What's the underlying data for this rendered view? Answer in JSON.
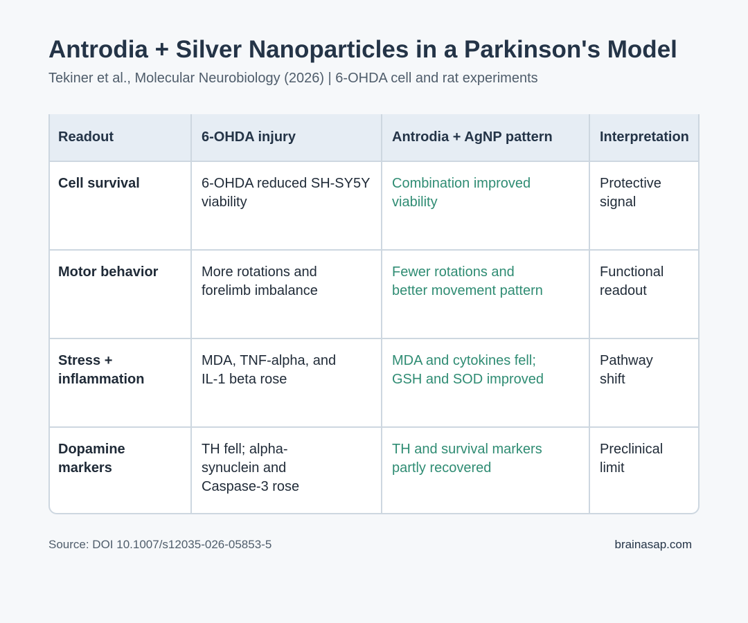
{
  "title": "Antrodia + Silver Nanoparticles in a Parkinson's Model",
  "subtitle": "Tekiner et al., Molecular Neurobiology (2026) | 6-OHDA cell and rat experiments",
  "table": {
    "headers": [
      "Readout",
      "6-OHDA injury",
      "Antrodia + AgNP pattern",
      "Interpretation"
    ],
    "rows": [
      {
        "readout": [
          "Cell survival"
        ],
        "injury": [
          "6-OHDA reduced SH-SY5Y",
          "viability"
        ],
        "pattern": [
          "Combination improved",
          "viability"
        ],
        "interpretation": [
          "Protective",
          "signal"
        ]
      },
      {
        "readout": [
          "Motor behavior"
        ],
        "injury": [
          "More rotations and",
          "forelimb imbalance"
        ],
        "pattern": [
          "Fewer rotations and",
          "better movement pattern"
        ],
        "interpretation": [
          "Functional",
          "readout"
        ]
      },
      {
        "readout": [
          "Stress +",
          "inflammation"
        ],
        "injury": [
          "MDA, TNF-alpha, and",
          "IL-1 beta rose"
        ],
        "pattern": [
          "MDA and cytokines fell;",
          "GSH and SOD improved"
        ],
        "interpretation": [
          "Pathway",
          "shift"
        ]
      },
      {
        "readout": [
          "Dopamine",
          "markers"
        ],
        "injury": [
          "TH fell; alpha-",
          "synuclein and",
          "Caspase-3 rose"
        ],
        "pattern": [
          "TH and survival markers",
          "partly recovered"
        ],
        "interpretation": [
          "Preclinical",
          "limit"
        ]
      }
    ]
  },
  "footer": {
    "source": "Source: DOI 10.1007/s12035-026-05853-5",
    "brand": "brainasap.com"
  },
  "colors": {
    "title": "#243447",
    "pattern_text": "#2f8c73",
    "header_bg": "#e6edf4",
    "border": "#cdd7e0",
    "page_bg": "#f6f8fa"
  }
}
